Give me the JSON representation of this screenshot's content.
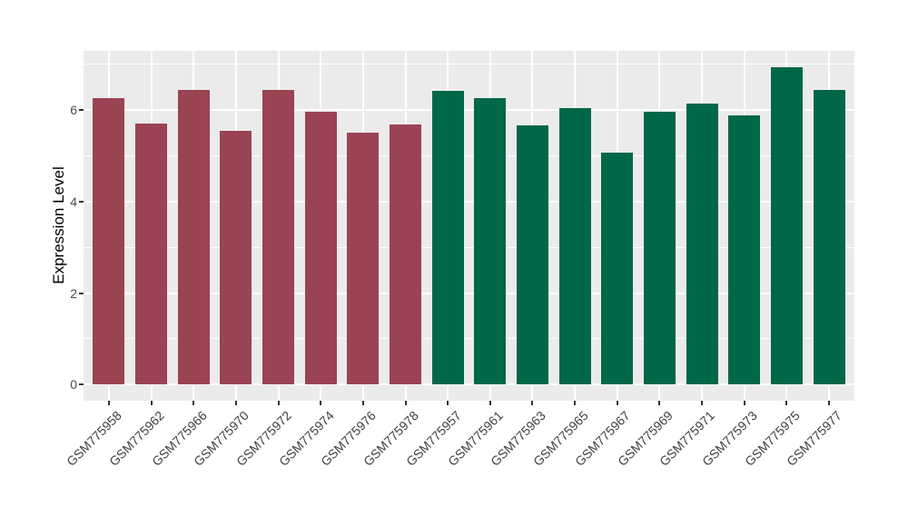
{
  "figure": {
    "background": "#FFFFFF",
    "panel_background": "#EBEBEB",
    "gridline_color": "#FFFFFF",
    "axis_text_color": "#4D4D4D",
    "axis_title_color": "#000000",
    "tick_mark_color": "#333333"
  },
  "chart_data": {
    "type": "bar",
    "title": "",
    "xlabel": "",
    "ylabel": "Expression Level",
    "ylim": [
      -0.35,
      7.29
    ],
    "y_ticks": [
      0,
      2,
      4,
      6
    ],
    "y_minor_ticks": [
      1,
      3,
      5,
      7
    ],
    "grid": "on",
    "legend": "none",
    "x_tick_rotation": 45,
    "bar_groups": {
      "group1": "#9A4352",
      "group2": "#006748"
    },
    "categories": [
      "GSM775958",
      "GSM775962",
      "GSM775966",
      "GSM775970",
      "GSM775972",
      "GSM775974",
      "GSM775976",
      "GSM775978",
      "GSM775957",
      "GSM775961",
      "GSM775963",
      "GSM775965",
      "GSM775967",
      "GSM775969",
      "GSM775971",
      "GSM775973",
      "GSM775975",
      "GSM775977"
    ],
    "groups": [
      "group1",
      "group1",
      "group1",
      "group1",
      "group1",
      "group1",
      "group1",
      "group1",
      "group2",
      "group2",
      "group2",
      "group2",
      "group2",
      "group2",
      "group2",
      "group2",
      "group2",
      "group2"
    ],
    "values": [
      6.26,
      5.7,
      6.44,
      5.55,
      6.43,
      5.96,
      5.5,
      5.68,
      6.42,
      6.25,
      5.66,
      6.04,
      5.06,
      5.97,
      6.14,
      5.89,
      6.94,
      6.44
    ]
  }
}
